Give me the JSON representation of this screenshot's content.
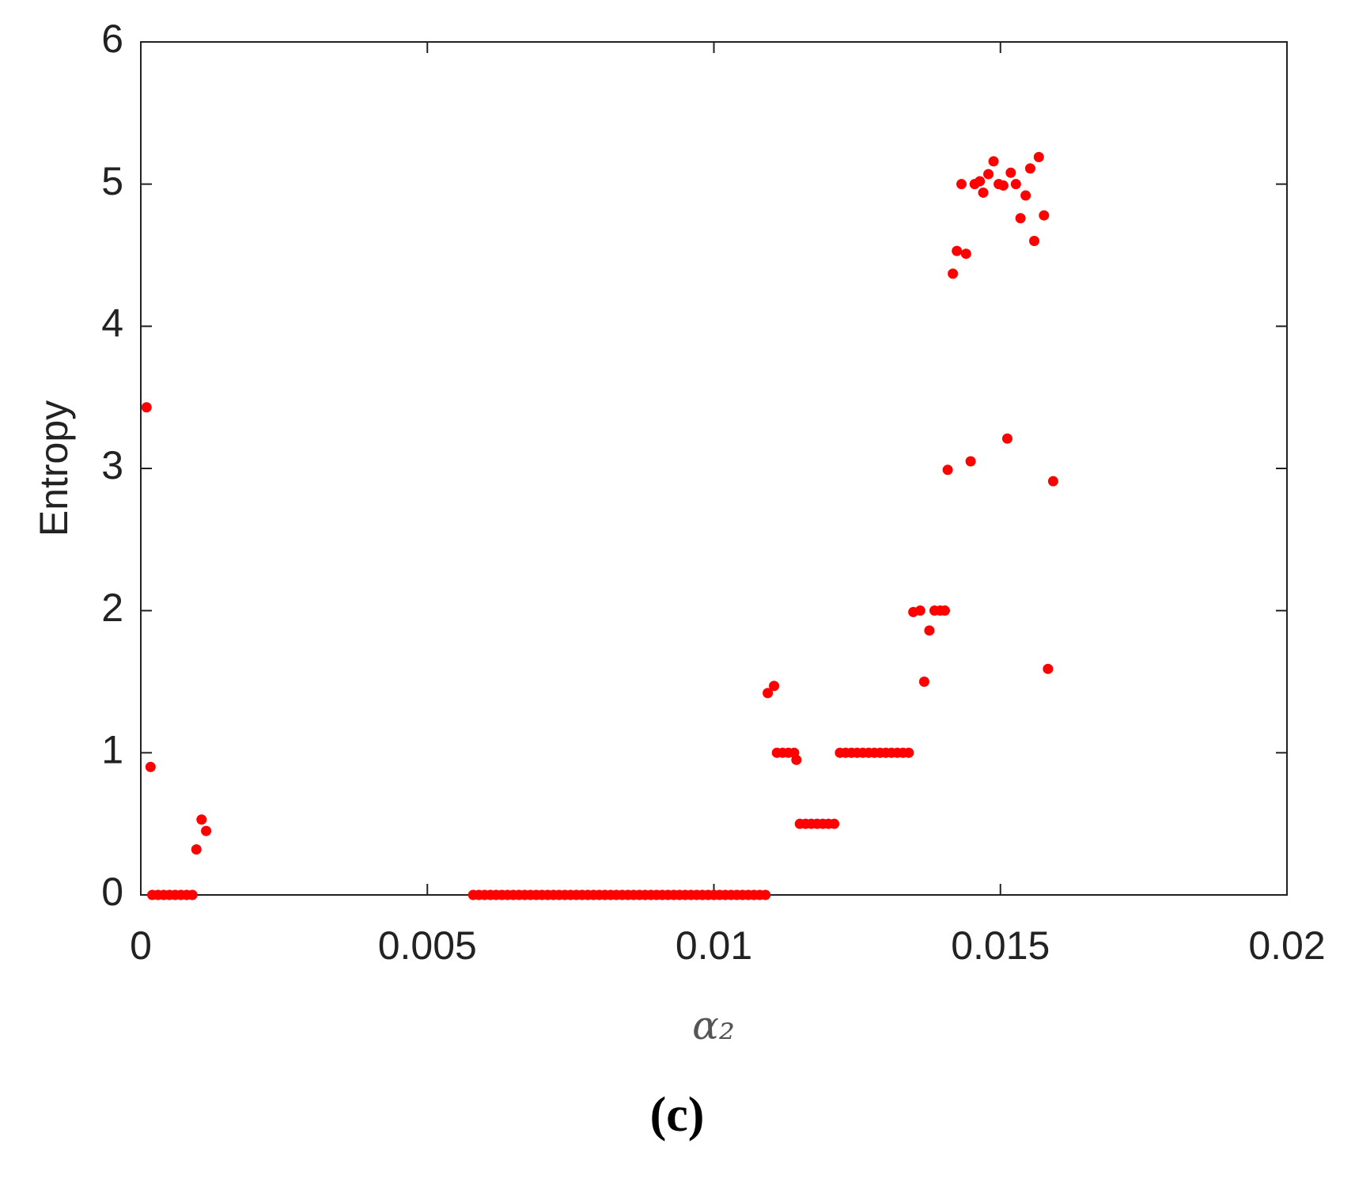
{
  "chart_data": {
    "type": "scatter",
    "xlabel": "α₂",
    "ylabel": "Entropy",
    "caption": "(c)",
    "color": "#ff0000",
    "xlim": [
      0,
      0.02
    ],
    "xticks": [
      0,
      0.005,
      0.01,
      0.015,
      0.02
    ],
    "ylim": [
      0,
      6
    ],
    "yticks": [
      0,
      1,
      2,
      3,
      4,
      5,
      6
    ],
    "x": [
      0.0001,
      0.00017,
      0.0002,
      0.0003,
      0.0004,
      0.0005,
      0.0006,
      0.0007,
      0.0008,
      0.0009,
      0.00097,
      0.00106,
      0.00114,
      0.0058,
      0.0059,
      0.006,
      0.0061,
      0.0062,
      0.0063,
      0.0064,
      0.0065,
      0.0066,
      0.0067,
      0.0068,
      0.0069,
      0.007,
      0.0071,
      0.0072,
      0.0073,
      0.0074,
      0.0075,
      0.0076,
      0.0077,
      0.0078,
      0.0079,
      0.008,
      0.0081,
      0.0082,
      0.0083,
      0.0084,
      0.0085,
      0.0086,
      0.0087,
      0.0088,
      0.0089,
      0.009,
      0.0091,
      0.0092,
      0.0093,
      0.0094,
      0.0095,
      0.0096,
      0.0097,
      0.0098,
      0.0099,
      0.01,
      0.0101,
      0.0102,
      0.0103,
      0.0104,
      0.0105,
      0.0106,
      0.0107,
      0.0108,
      0.0109,
      0.01094,
      0.01105,
      0.0111,
      0.0112,
      0.0113,
      0.0114,
      0.01144,
      0.0115,
      0.0116,
      0.0117,
      0.0118,
      0.0119,
      0.012,
      0.0121,
      0.0122,
      0.0123,
      0.0124,
      0.0125,
      0.0126,
      0.0127,
      0.0128,
      0.0129,
      0.013,
      0.0131,
      0.0132,
      0.0133,
      0.0134,
      0.01348,
      0.0136,
      0.01367,
      0.01376,
      0.01385,
      0.01395,
      0.01403,
      0.01408,
      0.01417,
      0.01424,
      0.01432,
      0.0144,
      0.01448,
      0.01455,
      0.01464,
      0.0147,
      0.01479,
      0.01488,
      0.01497,
      0.01505,
      0.01512,
      0.01518,
      0.01527,
      0.01535,
      0.01544,
      0.01552,
      0.01559,
      0.01567,
      0.01576,
      0.01583,
      0.01592
    ],
    "values": [
      3.43,
      0.9,
      0,
      0,
      0,
      0,
      0,
      0,
      0,
      0,
      0.32,
      0.53,
      0.45,
      0,
      0,
      0,
      0,
      0,
      0,
      0,
      0,
      0,
      0,
      0,
      0,
      0,
      0,
      0,
      0,
      0,
      0,
      0,
      0,
      0,
      0,
      0,
      0,
      0,
      0,
      0,
      0,
      0,
      0,
      0,
      0,
      0,
      0,
      0,
      0,
      0,
      0,
      0,
      0,
      0,
      0,
      0,
      0,
      0,
      0,
      0,
      0,
      0,
      0,
      0,
      0,
      1.42,
      1.47,
      1,
      1,
      1,
      1,
      0.95,
      0.5,
      0.5,
      0.5,
      0.5,
      0.5,
      0.5,
      0.5,
      1,
      1,
      1,
      1,
      1,
      1,
      1,
      1,
      1,
      1,
      1,
      1,
      1,
      1.99,
      2,
      1.5,
      1.86,
      2,
      2,
      2,
      2.99,
      4.37,
      4.53,
      5,
      4.51,
      3.05,
      5,
      5.02,
      4.94,
      5.07,
      5.16,
      5,
      4.99,
      3.21,
      5.08,
      5,
      4.76,
      4.92,
      5.11,
      4.6,
      5.19,
      4.78,
      1.59,
      2.91
    ]
  }
}
